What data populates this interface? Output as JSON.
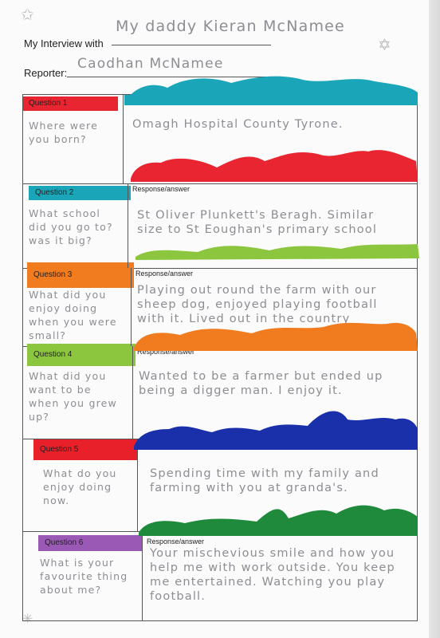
{
  "header": {
    "interview_label": "My Interview with",
    "interviewee": "My daddy Kieran McNamee",
    "reporter_label": "Reporter:",
    "reporter": "Caodhan McNamee"
  },
  "response_label": "Response/answer",
  "questions": [
    {
      "label": "Question 1",
      "question": "Where were you born?",
      "answer": "Omagh Hospital County Tyrone.",
      "color": "#e82530"
    },
    {
      "label": "Question 2",
      "question": "What school did you go to? was it big?",
      "answer": "St Oliver Plunkett's Beragh. Similar size to St Eoughan's primary school",
      "color": "#1aa6b8"
    },
    {
      "label": "Question 3",
      "question": "What did you enjoy doing when you were small?",
      "answer": "Playing out round the farm with our sheep dog, enjoyed playing football with it. Lived out in the country",
      "color": "#f07c1f"
    },
    {
      "label": "Question 4",
      "question": "What did you want to be when you grew up?",
      "answer": "Wanted to be a farmer but ended up being a digger man. I enjoy it.",
      "color": "#8cc63f"
    },
    {
      "label": "Question 5",
      "question": "What do you enjoy doing now.",
      "answer": "Spending time with my family and farming with you at granda's.",
      "color": "#e8202a"
    },
    {
      "label": "Question 6",
      "question": "What is your favourite thing about me?",
      "answer": "Your mischevious smile and how you help me with work outside. You keep me entertained. Watching you play football.",
      "color": "#9b59b6"
    }
  ],
  "colors": {
    "teal": "#1aa6b8",
    "red": "#e82530",
    "green": "#8cc63f",
    "orange": "#f07c1f",
    "blue": "#1a2faa",
    "darkgreen": "#1f8a3c"
  }
}
